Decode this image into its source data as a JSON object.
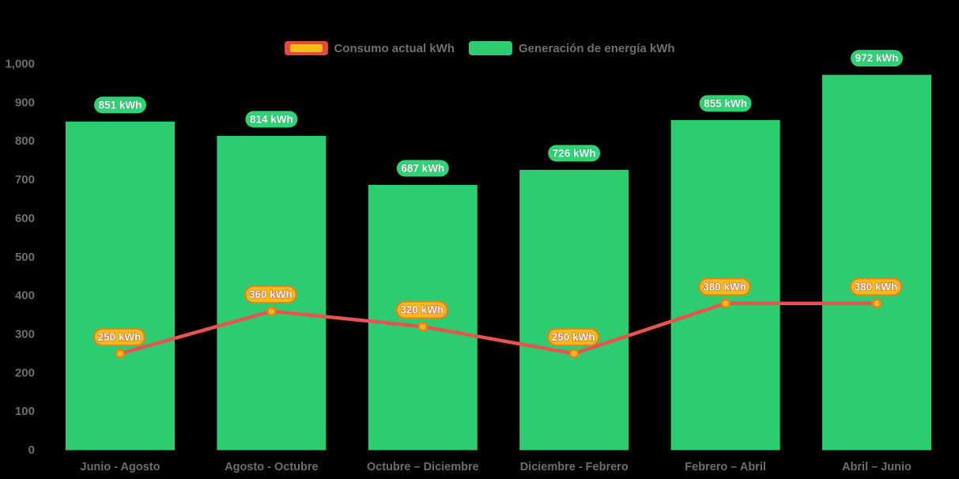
{
  "chart_data": {
    "type": "bar+line combo",
    "title": "",
    "categories": [
      "Junio - Agosto",
      "Agosto - Octubre",
      "Octubre – Diciembre",
      "Diciembre - Febrero",
      "Febrero – Abril",
      "Abril – Junio"
    ],
    "series": [
      {
        "name": "Consumo actual kWh",
        "type": "line",
        "values": [
          250,
          360,
          320,
          250,
          380,
          380
        ],
        "labels": [
          "250 kWh",
          "360 kWh",
          "320 kWh",
          "250 kWh",
          "380 kWh",
          "380 kWh"
        ],
        "color": "#e8534b",
        "marker_fill": "#f2bb16",
        "marker_stroke": "#ef7c1c",
        "label_bg": "#f2bb16",
        "label_border": "#ef7c1c",
        "label_text_color": "#ffffff",
        "label_text_outline": "#d43a26"
      },
      {
        "name": "Generación de energía kWh",
        "type": "bar",
        "values": [
          851,
          814,
          687,
          726,
          855,
          972
        ],
        "labels": [
          "851 kWh",
          "814 kWh",
          "687 kWh",
          "726 kWh",
          "855 kWh",
          "972 kWh"
        ],
        "color": "#2ecc71",
        "label_bg": "#2fd375",
        "label_text_color": "#ffffff",
        "label_text_outline": "#179a55"
      }
    ],
    "yaxis": {
      "min": 0,
      "max": 1000,
      "tick_step": 100,
      "tick_labels": [
        "0",
        "100",
        "200",
        "300",
        "400",
        "500",
        "600",
        "700",
        "800",
        "900",
        "1,000"
      ]
    },
    "grid": false,
    "legend_position": "top",
    "axis_text_color": "#6e6e6e",
    "legend_text_color": "#6f6f6f",
    "background": "#000000"
  }
}
